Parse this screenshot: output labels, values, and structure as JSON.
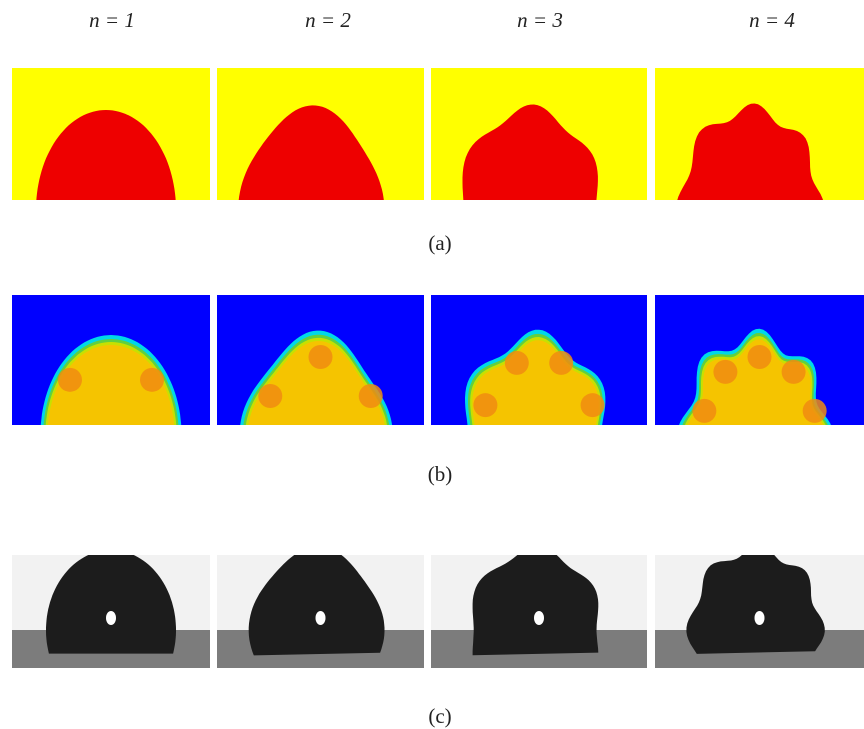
{
  "columns": [
    "n = 1",
    "n = 2",
    "n = 3",
    "n = 4"
  ],
  "rows": [
    "(a)",
    "(b)",
    "(c)"
  ]
}
